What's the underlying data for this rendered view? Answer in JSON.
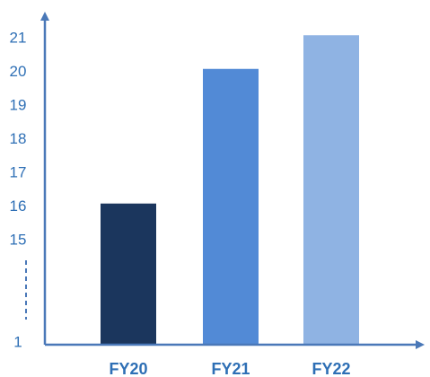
{
  "chart_data": {
    "type": "bar",
    "categories": [
      "FY20",
      "FY21",
      "FY22"
    ],
    "values": [
      16.1,
      20.1,
      21.1
    ],
    "y_tick_labels": [
      "1",
      "15",
      "16",
      "17",
      "18",
      "19",
      "20",
      "21"
    ],
    "y_axis_break": true,
    "title": "",
    "xlabel": "",
    "ylabel": "",
    "grid": false,
    "legend": "none"
  },
  "colors": {
    "axis": "#4a78b8",
    "tick_text": "#2e6fb5",
    "category_text": "#2e6fb5",
    "bars": [
      "#1b365d",
      "#528ad6",
      "#8fb3e3"
    ]
  }
}
